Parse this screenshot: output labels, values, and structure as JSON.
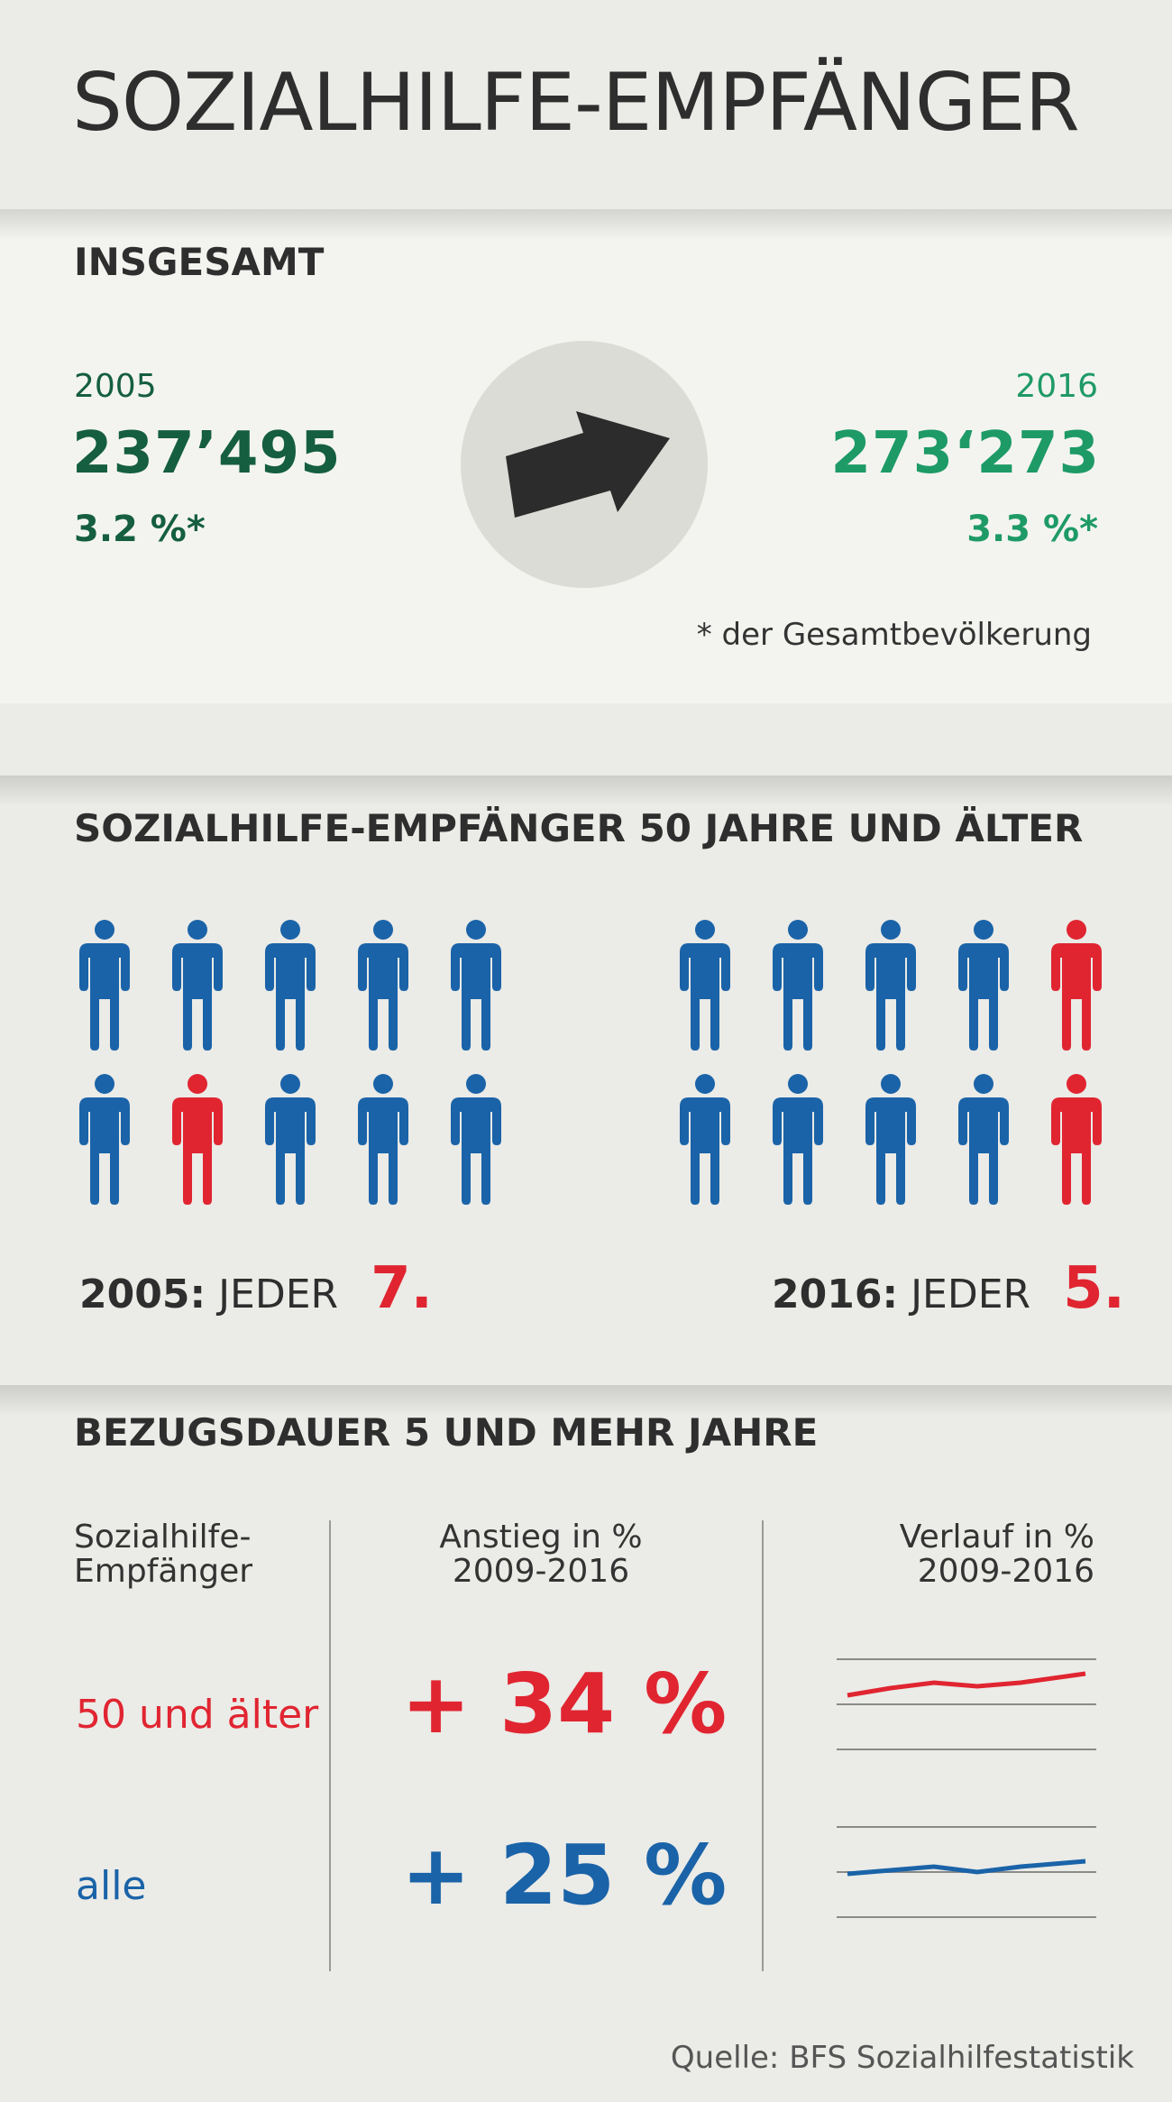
{
  "header": {
    "title": "SOZIALHILFE-EMPFÄNGER"
  },
  "total": {
    "heading": "INSGESAMT",
    "left": {
      "year": "2005",
      "count": "237’495",
      "percent": "3.2 %*"
    },
    "right": {
      "year": "2016",
      "count": "273‘273",
      "percent": "3.3 %*"
    },
    "trend_icon": "arrow-up-right-icon",
    "footnote": "* der Gesamtbevölkerung"
  },
  "older": {
    "heading": "SOZIALHILFE-EMPFÄNGER 50 JAHRE UND ÄLTER",
    "groups": [
      {
        "year": "2005:",
        "label": "JEDER",
        "number": "7.",
        "red_positions": [
          6
        ]
      },
      {
        "year": "2016:",
        "label": "JEDER",
        "number": "5.",
        "red_positions": [
          4,
          9
        ]
      }
    ]
  },
  "duration": {
    "heading": "BEZUGSDAUER 5 UND MEHR JAHRE",
    "columns": {
      "group": [
        "Sozialhilfe-",
        "Empfänger"
      ],
      "increase": [
        "Anstieg in %",
        "2009-2016"
      ],
      "trend": [
        "Verlauf in %",
        "2009-2016"
      ]
    },
    "rows": [
      {
        "label": "50 und älter",
        "value": "+ 34 %",
        "color": "#e02531"
      },
      {
        "label": "alle",
        "value": "+ 25 %",
        "color": "#1a63a8"
      }
    ]
  },
  "source": "Quelle: BFS Sozialhilfestatistik",
  "colors": {
    "blue": "#1a63a8",
    "red": "#e02531",
    "dark_green": "#155e40",
    "light_green": "#1e9a66"
  }
}
